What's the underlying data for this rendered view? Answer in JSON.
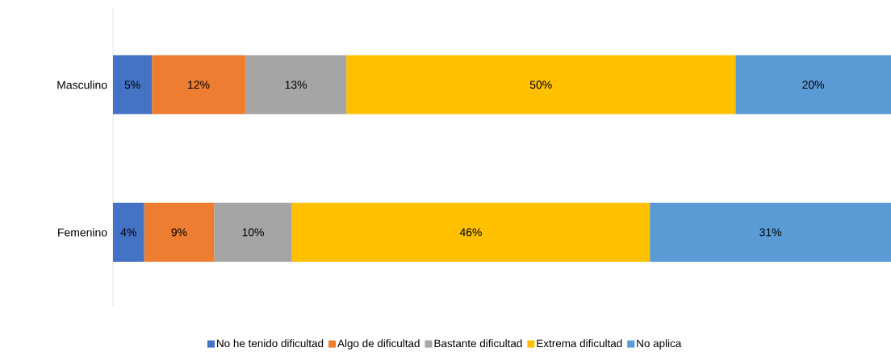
{
  "chart_data": {
    "type": "bar",
    "orientation": "horizontal",
    "stacked": true,
    "categories": [
      "Masculino",
      "Femenino"
    ],
    "xlim": [
      0,
      100
    ],
    "legend": "bottom",
    "series": [
      {
        "name": "No he tenido dificultad",
        "color": "#4472c4",
        "values": [
          5,
          4
        ],
        "value_labels": [
          "5%",
          "4%"
        ]
      },
      {
        "name": "Algo de dificultad",
        "color": "#ed7d31",
        "values": [
          12,
          9
        ],
        "value_labels": [
          "12%",
          "9%"
        ]
      },
      {
        "name": "Bastante dificultad",
        "color": "#a5a5a5",
        "values": [
          13,
          10
        ],
        "value_labels": [
          "13%",
          "10%"
        ]
      },
      {
        "name": "Extrema dificultad",
        "color": "#ffc000",
        "values": [
          50,
          46
        ],
        "value_labels": [
          "50%",
          "46%"
        ]
      },
      {
        "name": "No aplica",
        "color": "#5b9bd5",
        "values": [
          20,
          31
        ],
        "value_labels": [
          "20%",
          "31%"
        ]
      }
    ]
  }
}
